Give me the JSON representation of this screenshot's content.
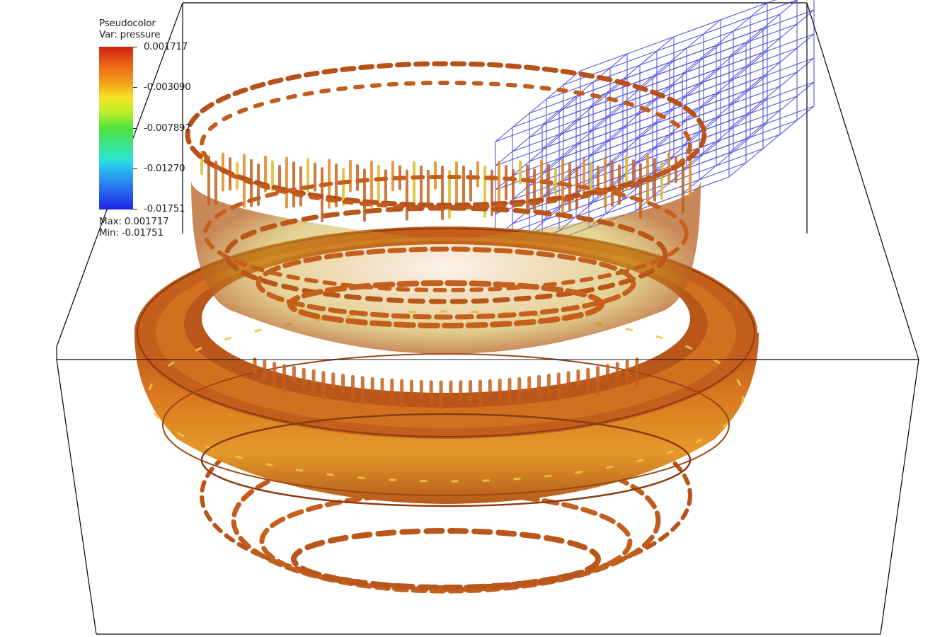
{
  "legend": {
    "title": "Pseudocolor",
    "var_label": "Var: pressure",
    "ticks": [
      "0.001717",
      "-0.003090",
      "-0.007897",
      "-0.01270",
      "-0.01751"
    ],
    "max_label": "Max: 0.001717",
    "min_label": "Min: -0.01751",
    "colors": [
      "#d21f10",
      "#f3a41c",
      "#f6e325",
      "#4ee03a",
      "#2ac8f2",
      "#1f24e8"
    ]
  },
  "scene": {
    "surface_color": "#c8601c",
    "mesh_color": "#2a2ad8",
    "bounding_box_color": "#000000"
  }
}
